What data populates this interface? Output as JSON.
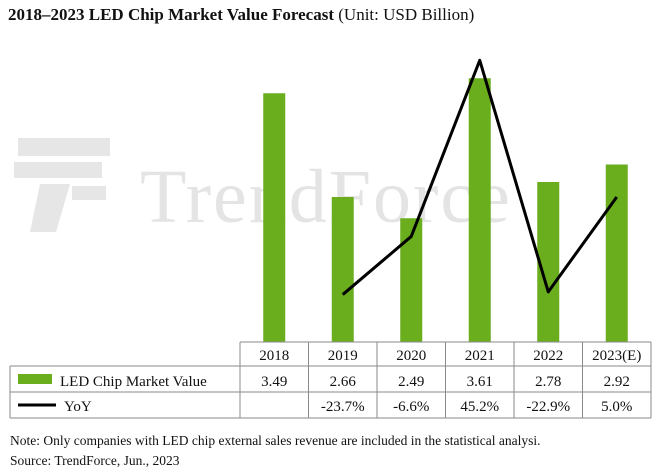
{
  "title": {
    "bold": "2018–2023 LED Chip Market Value Forecast",
    "unit": "(Unit: USD Billion)"
  },
  "watermark": "TrendForce",
  "chart_data": {
    "type": "bar",
    "title": "2018–2023 LED Chip Market Value Forecast (Unit: USD Billion)",
    "categories": [
      "2018",
      "2019",
      "2020",
      "2021",
      "2022",
      "2023(E)"
    ],
    "series": [
      {
        "name": "LED Chip Market Value",
        "type": "bar",
        "color": "#6aae1e",
        "values": [
          3.49,
          2.66,
          2.49,
          3.61,
          2.78,
          2.92
        ],
        "labels": [
          "3.49",
          "2.66",
          "2.49",
          "3.61",
          "2.78",
          "2.92"
        ]
      },
      {
        "name": "YoY",
        "type": "line",
        "color": "#000000",
        "values": [
          null,
          -23.7,
          -6.6,
          45.2,
          -22.9,
          5.0
        ],
        "labels": [
          "",
          "-23.7%",
          "-6.6%",
          "45.2%",
          "-22.9%",
          "5.0%"
        ]
      }
    ],
    "data_table": true,
    "legend": "left (in data table)"
  },
  "footnote": "Note: Only companies with LED chip external sales revenue are included in the statistical analysi.",
  "source": "Source: TrendForce, Jun., 2023"
}
